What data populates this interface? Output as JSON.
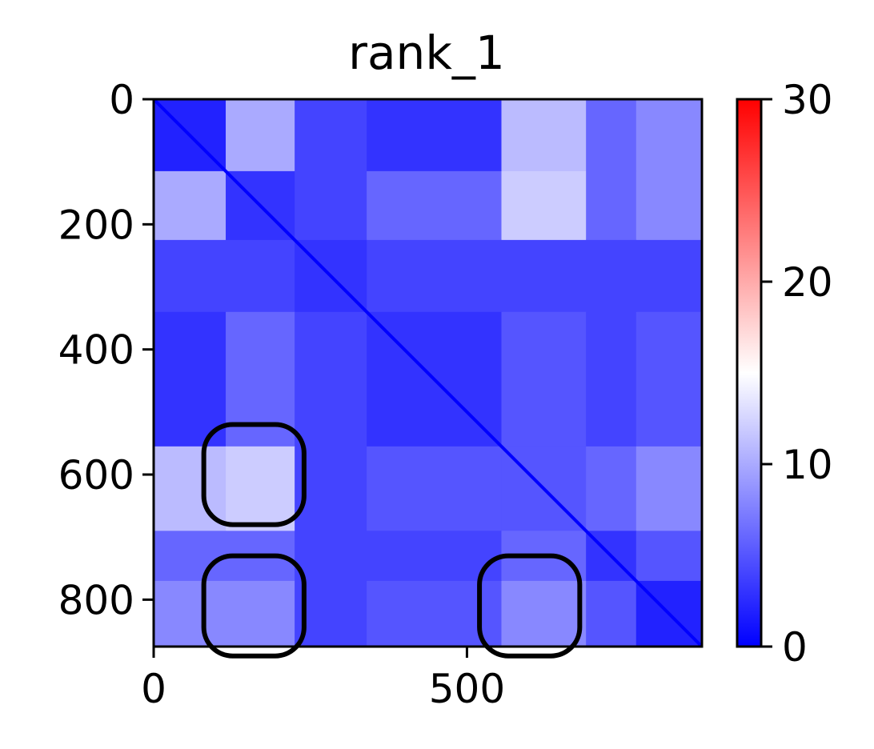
{
  "chart_data": {
    "type": "heatmap",
    "title": "rank_1",
    "xlabel": "",
    "ylabel": "",
    "xlim": [
      0,
      875
    ],
    "ylim": [
      875,
      0
    ],
    "x_ticks": [
      {
        "value": 0,
        "label": "0"
      },
      {
        "value": 500,
        "label": "500"
      }
    ],
    "y_ticks": [
      {
        "value": 0,
        "label": "0"
      },
      {
        "value": 200,
        "label": "200"
      },
      {
        "value": 400,
        "label": "400"
      },
      {
        "value": 600,
        "label": "600"
      },
      {
        "value": 800,
        "label": "800"
      }
    ],
    "colorbar": {
      "range": [
        0,
        30
      ],
      "colormap": "bwr",
      "colors": [
        "#0000ff",
        "#ffffff",
        "#ff0000"
      ],
      "ticks": [
        {
          "value": 0,
          "label": "0"
        },
        {
          "value": 10,
          "label": "10"
        },
        {
          "value": 20,
          "label": "20"
        },
        {
          "value": 30,
          "label": "30"
        }
      ]
    },
    "matrix_size": 875,
    "segments": [
      0,
      115,
      225,
      340,
      555,
      690,
      770,
      875
    ],
    "block_values": [
      [
        2,
        10,
        4,
        3,
        11,
        6,
        8
      ],
      [
        10,
        3,
        4,
        6,
        12,
        6,
        8
      ],
      [
        4,
        4,
        3,
        4,
        4,
        4,
        4
      ],
      [
        3,
        6,
        4,
        3,
        5,
        4,
        5
      ],
      [
        11,
        12,
        4,
        5,
        5,
        6,
        8
      ],
      [
        6,
        6,
        4,
        4,
        6,
        3,
        5
      ],
      [
        8,
        8,
        4,
        5,
        8,
        5,
        2
      ]
    ],
    "annotations": [
      {
        "shape": "rounded-rect",
        "x_range": [
          80,
          240
        ],
        "y_range": [
          520,
          680
        ]
      },
      {
        "shape": "rounded-rect",
        "x_range": [
          80,
          240
        ],
        "y_range": [
          730,
          890
        ]
      },
      {
        "shape": "rounded-rect",
        "x_range": [
          520,
          680
        ],
        "y_range": [
          730,
          890
        ]
      }
    ]
  }
}
